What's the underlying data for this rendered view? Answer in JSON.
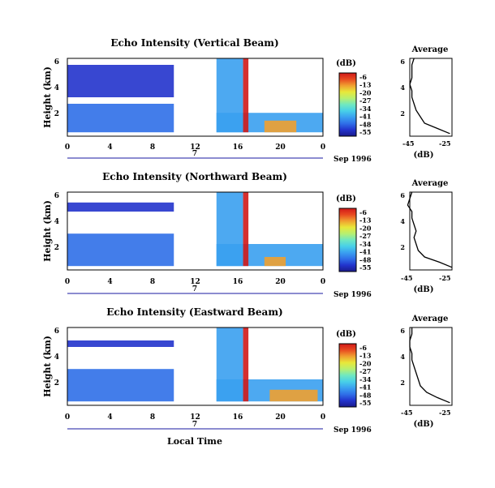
{
  "figure": {
    "date_label": "Sep 1996",
    "xlabel": "Local Time",
    "day_label": "7",
    "x_ticks": [
      "0",
      "4",
      "8",
      "12",
      "16",
      "20",
      "0"
    ],
    "y_ticks": [
      "2",
      "4",
      "6"
    ],
    "ylabel": "Height (km)",
    "cbar_unit": "(dB)",
    "cbar_ticks": [
      "-6",
      "-13",
      "-20",
      "-27",
      "-34",
      "-41",
      "-48",
      "-55"
    ],
    "avg_title": "Average",
    "avg_xlabel": "(dB)",
    "avg_x_ticks": [
      "-45",
      "-25"
    ],
    "avg_y_ticks": [
      "2",
      "4",
      "6"
    ]
  },
  "colors": {
    "colormap": [
      "#1a1a8c",
      "#2233cc",
      "#2f6fe8",
      "#3aa0f0",
      "#48d0e8",
      "#70e8c0",
      "#b8f070",
      "#e8e83a",
      "#f0a030",
      "#e84a20",
      "#d01818"
    ]
  },
  "chart_data": [
    {
      "type": "heatmap",
      "title": "Echo Intensity (Vertical Beam)",
      "xlabel": "",
      "ylabel": "Height (km)",
      "xlim": [
        0,
        24
      ],
      "ylim": [
        0,
        6
      ],
      "x_unit": "hours local time, Sep 7 1996",
      "colorbar": {
        "label": "(dB)",
        "range": [
          -55,
          -6
        ]
      },
      "data_gap_hours": [
        10,
        14
      ],
      "regions": [
        {
          "x": [
            0,
            10
          ],
          "y": [
            0.3,
            2.5
          ],
          "db": -45
        },
        {
          "x": [
            0,
            10
          ],
          "y": [
            3.0,
            5.5
          ],
          "db": -50
        },
        {
          "x": [
            14,
            24
          ],
          "y": [
            0.3,
            1.8
          ],
          "db": -42
        },
        {
          "x": [
            14,
            16.5
          ],
          "y": [
            0.3,
            6.0
          ],
          "db": -40
        },
        {
          "x": [
            16.5,
            17.0
          ],
          "y": [
            0.3,
            6.0
          ],
          "db": -8
        },
        {
          "x": [
            18.5,
            21.5
          ],
          "y": [
            0.3,
            1.2
          ],
          "db": -15
        }
      ],
      "average_profile": {
        "xlim": [
          -45,
          -25
        ],
        "height_km": [
          0.2,
          0.6,
          1.0,
          1.5,
          2.0,
          2.5,
          3.0,
          3.5,
          4.0,
          4.5,
          5.0,
          5.5,
          6.0
        ],
        "db": [
          -26,
          -32,
          -38,
          -40,
          -42,
          -43,
          -44,
          -44,
          -45,
          -44,
          -44,
          -44,
          -43
        ]
      }
    },
    {
      "type": "heatmap",
      "title": "Echo Intensity (Northward Beam)",
      "xlabel": "",
      "ylabel": "Height (km)",
      "xlim": [
        0,
        24
      ],
      "ylim": [
        0,
        6
      ],
      "x_unit": "hours local time, Sep 7 1996",
      "colorbar": {
        "label": "(dB)",
        "range": [
          -55,
          -6
        ]
      },
      "data_gap_hours": [
        10,
        14
      ],
      "regions": [
        {
          "x": [
            0,
            10
          ],
          "y": [
            0.3,
            2.8
          ],
          "db": -44
        },
        {
          "x": [
            0,
            10
          ],
          "y": [
            4.5,
            5.2
          ],
          "db": -50
        },
        {
          "x": [
            14,
            24
          ],
          "y": [
            0.3,
            2.0
          ],
          "db": -42
        },
        {
          "x": [
            14,
            16.5
          ],
          "y": [
            0.3,
            6.0
          ],
          "db": -40
        },
        {
          "x": [
            16.5,
            17.0
          ],
          "y": [
            0.3,
            6.0
          ],
          "db": -8
        },
        {
          "x": [
            18.5,
            20.5
          ],
          "y": [
            0.3,
            1.0
          ],
          "db": -15
        }
      ],
      "average_profile": {
        "xlim": [
          -45,
          -25
        ],
        "height_km": [
          0.2,
          0.6,
          1.0,
          1.5,
          2.0,
          2.5,
          3.0,
          3.5,
          4.0,
          4.5,
          5.0,
          5.5,
          6.0
        ],
        "db": [
          -25,
          -31,
          -38,
          -41,
          -42,
          -43,
          -42,
          -43,
          -44,
          -44,
          -46,
          -45,
          -44
        ]
      }
    },
    {
      "type": "heatmap",
      "title": "Echo Intensity (Eastward Beam)",
      "xlabel": "Local Time",
      "ylabel": "Height (km)",
      "xlim": [
        0,
        24
      ],
      "ylim": [
        0,
        6
      ],
      "x_unit": "hours local time, Sep 7 1996",
      "colorbar": {
        "label": "(dB)",
        "range": [
          -55,
          -6
        ]
      },
      "data_gap_hours": [
        10,
        14
      ],
      "regions": [
        {
          "x": [
            0,
            10
          ],
          "y": [
            0.3,
            2.8
          ],
          "db": -46
        },
        {
          "x": [
            0,
            10
          ],
          "y": [
            4.5,
            5.0
          ],
          "db": -50
        },
        {
          "x": [
            14,
            24
          ],
          "y": [
            0.3,
            2.0
          ],
          "db": -42
        },
        {
          "x": [
            14,
            16.5
          ],
          "y": [
            0.3,
            6.0
          ],
          "db": -40
        },
        {
          "x": [
            16.5,
            17.0
          ],
          "y": [
            0.3,
            6.0
          ],
          "db": -8
        },
        {
          "x": [
            19,
            23.5
          ],
          "y": [
            0.3,
            1.2
          ],
          "db": -15
        }
      ],
      "average_profile": {
        "xlim": [
          -45,
          -25
        ],
        "height_km": [
          0.2,
          0.6,
          1.0,
          1.5,
          2.0,
          2.5,
          3.0,
          3.5,
          4.0,
          4.5,
          5.0,
          5.5,
          6.0
        ],
        "db": [
          -26,
          -32,
          -37,
          -40,
          -41,
          -42,
          -43,
          -44,
          -44,
          -45,
          -45,
          -44,
          -44
        ]
      }
    }
  ]
}
